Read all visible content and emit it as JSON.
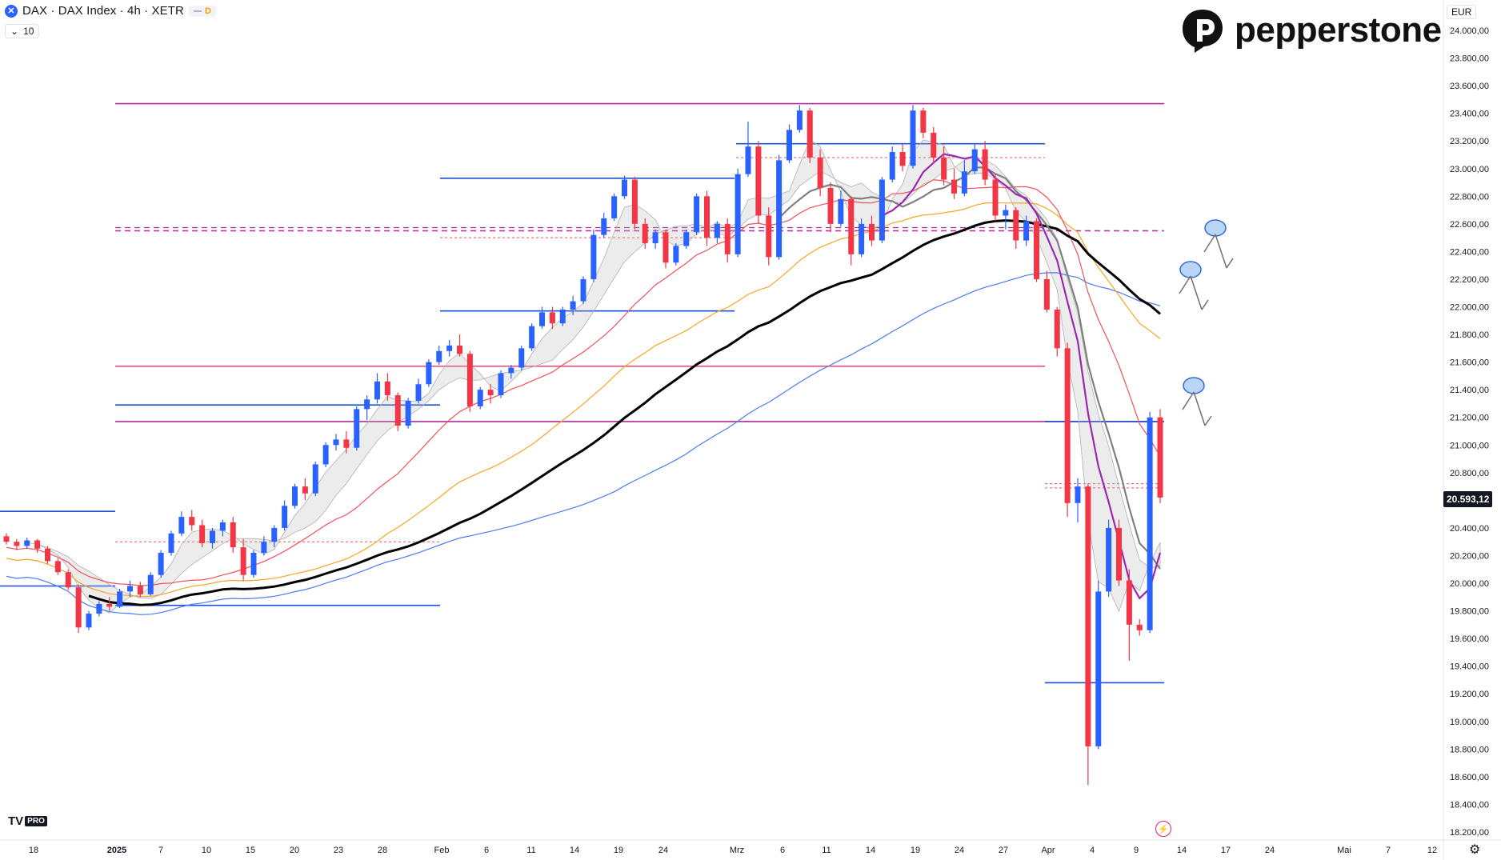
{
  "header": {
    "title": "DAX · DAX Index · 4h · XETR",
    "badge_letter": "D",
    "volume_label": "10",
    "currency": "EUR"
  },
  "brand": {
    "name": "pepperstone",
    "tv_logo": "TV",
    "tv_badge": "PRO"
  },
  "last_price": "20.593,12",
  "colors": {
    "up": "#2962ff",
    "down": "#f23645",
    "ma_black": "#000000",
    "ma_blue": "#4a7cf0",
    "ma_orange": "#f5a623",
    "ma_red": "#f0505a",
    "purple": "#9c27b0",
    "gray_ma": "#808080",
    "magenta_line": "#b02c98",
    "pink_line": "#f0507a",
    "level_blue": "#1e4fd8"
  },
  "chart_data": {
    "type": "candlestick",
    "symbol": "DAX",
    "timeframe": "4h",
    "ylim": [
      18200,
      24100
    ],
    "y_ticks": [
      "24.000,00",
      "23.800,00",
      "23.600,00",
      "23.400,00",
      "23.200,00",
      "23.000,00",
      "22.800,00",
      "22.600,00",
      "22.400,00",
      "22.200,00",
      "22.000,00",
      "21.800,00",
      "21.600,00",
      "21.400,00",
      "21.200,00",
      "21.000,00",
      "20.800,00",
      "20.600,00",
      "20.400,00",
      "20.200,00",
      "20.000,00",
      "19.800,00",
      "19.600,00",
      "19.400,00",
      "19.200,00",
      "19.000,00",
      "18.800,00",
      "18.600,00",
      "18.400,00",
      "18.200,00"
    ],
    "x_ticks": [
      "18",
      "2025",
      "7",
      "10",
      "15",
      "20",
      "23",
      "28",
      "Feb",
      "6",
      "11",
      "14",
      "19",
      "24",
      "Mrz",
      "6",
      "11",
      "14",
      "19",
      "24",
      "27",
      "Apr",
      "4",
      "9",
      "14",
      "17",
      "24",
      "Mai",
      "7",
      "12"
    ],
    "horizontal_levels": [
      {
        "price": 23470,
        "color": "magenta"
      },
      {
        "price": 23180,
        "color": "blue"
      },
      {
        "price": 22930,
        "color": "blue"
      },
      {
        "price": 22550,
        "color": "magenta",
        "dashed": true
      },
      {
        "price": 21970,
        "color": "blue"
      },
      {
        "price": 21570,
        "color": "pink"
      },
      {
        "price": 21290,
        "color": "blue"
      },
      {
        "price": 21170,
        "color": "magenta"
      },
      {
        "price": 20520,
        "color": "blue"
      },
      {
        "price": 19840,
        "color": "blue"
      },
      {
        "price": 19280,
        "color": "blue"
      }
    ],
    "candles": [
      [
        20340,
        20360,
        20280,
        20300
      ],
      [
        20300,
        20320,
        20240,
        20270
      ],
      [
        20270,
        20330,
        20250,
        20310
      ],
      [
        20310,
        20320,
        20220,
        20250
      ],
      [
        20250,
        20270,
        20140,
        20160
      ],
      [
        20160,
        20180,
        20060,
        20080
      ],
      [
        20080,
        20100,
        19950,
        19970
      ],
      [
        19970,
        19990,
        19640,
        19680
      ],
      [
        19680,
        19800,
        19660,
        19780
      ],
      [
        19780,
        19870,
        19760,
        19850
      ],
      [
        19850,
        19900,
        19800,
        19830
      ],
      [
        19830,
        19960,
        19820,
        19940
      ],
      [
        19940,
        20020,
        19900,
        19980
      ],
      [
        19980,
        20010,
        19900,
        19920
      ],
      [
        19920,
        20080,
        19910,
        20060
      ],
      [
        20060,
        20240,
        20040,
        20220
      ],
      [
        20220,
        20380,
        20200,
        20360
      ],
      [
        20360,
        20520,
        20340,
        20480
      ],
      [
        20480,
        20530,
        20380,
        20420
      ],
      [
        20420,
        20460,
        20260,
        20290
      ],
      [
        20290,
        20400,
        20250,
        20380
      ],
      [
        20380,
        20460,
        20340,
        20440
      ],
      [
        20440,
        20480,
        20220,
        20260
      ],
      [
        20260,
        20320,
        20020,
        20060
      ],
      [
        20060,
        20240,
        20040,
        20220
      ],
      [
        20220,
        20340,
        20200,
        20300
      ],
      [
        20300,
        20420,
        20260,
        20400
      ],
      [
        20400,
        20600,
        20380,
        20560
      ],
      [
        20560,
        20720,
        20540,
        20700
      ],
      [
        20700,
        20760,
        20600,
        20650
      ],
      [
        20650,
        20880,
        20630,
        20860
      ],
      [
        20860,
        21020,
        20840,
        21000
      ],
      [
        21000,
        21080,
        20960,
        21040
      ],
      [
        21040,
        21100,
        20940,
        20980
      ],
      [
        20980,
        21280,
        20960,
        21260
      ],
      [
        21260,
        21360,
        21180,
        21330
      ],
      [
        21330,
        21520,
        21300,
        21460
      ],
      [
        21460,
        21520,
        21320,
        21360
      ],
      [
        21360,
        21380,
        21100,
        21140
      ],
      [
        21140,
        21340,
        21120,
        21320
      ],
      [
        21320,
        21480,
        21300,
        21440
      ],
      [
        21440,
        21620,
        21420,
        21600
      ],
      [
        21600,
        21720,
        21580,
        21680
      ],
      [
        21680,
        21760,
        21640,
        21720
      ],
      [
        21720,
        21800,
        21640,
        21660
      ],
      [
        21660,
        21680,
        21240,
        21280
      ],
      [
        21280,
        21420,
        21260,
        21400
      ],
      [
        21400,
        21440,
        21300,
        21360
      ],
      [
        21360,
        21540,
        21340,
        21520
      ],
      [
        21520,
        21580,
        21480,
        21560
      ],
      [
        21560,
        21720,
        21540,
        21700
      ],
      [
        21700,
        21880,
        21680,
        21860
      ],
      [
        21860,
        22000,
        21840,
        21960
      ],
      [
        21960,
        22000,
        21840,
        21880
      ],
      [
        21880,
        22000,
        21860,
        21980
      ],
      [
        21980,
        22080,
        21940,
        22040
      ],
      [
        22040,
        22220,
        22020,
        22200
      ],
      [
        22200,
        22560,
        22180,
        22520
      ],
      [
        22520,
        22680,
        22500,
        22640
      ],
      [
        22640,
        22820,
        22620,
        22800
      ],
      [
        22800,
        22950,
        22780,
        22920
      ],
      [
        22920,
        22940,
        22560,
        22600
      ],
      [
        22600,
        22640,
        22420,
        22460
      ],
      [
        22460,
        22560,
        22420,
        22540
      ],
      [
        22540,
        22560,
        22280,
        22320
      ],
      [
        22320,
        22460,
        22300,
        22440
      ],
      [
        22440,
        22560,
        22420,
        22540
      ],
      [
        22540,
        22820,
        22520,
        22800
      ],
      [
        22800,
        22840,
        22440,
        22500
      ],
      [
        22500,
        22620,
        22460,
        22600
      ],
      [
        22600,
        22640,
        22320,
        22380
      ],
      [
        22380,
        23000,
        22360,
        22960
      ],
      [
        22960,
        23340,
        22940,
        23160
      ],
      [
        23160,
        23200,
        22600,
        22660
      ],
      [
        22660,
        22720,
        22300,
        22360
      ],
      [
        22360,
        23100,
        22340,
        23060
      ],
      [
        23060,
        23320,
        23040,
        23280
      ],
      [
        23280,
        23460,
        23260,
        23420
      ],
      [
        23420,
        23440,
        23040,
        23080
      ],
      [
        23080,
        23140,
        22800,
        22860
      ],
      [
        22860,
        22900,
        22540,
        22600
      ],
      [
        22600,
        22840,
        22580,
        22780
      ],
      [
        22780,
        22800,
        22300,
        22380
      ],
      [
        22380,
        22640,
        22360,
        22600
      ],
      [
        22600,
        22660,
        22440,
        22480
      ],
      [
        22480,
        22940,
        22460,
        22920
      ],
      [
        22920,
        23160,
        22900,
        23120
      ],
      [
        23120,
        23180,
        22980,
        23020
      ],
      [
        23020,
        23460,
        23000,
        23420
      ],
      [
        23420,
        23440,
        23220,
        23260
      ],
      [
        23260,
        23300,
        23040,
        23080
      ],
      [
        23080,
        23160,
        22880,
        22920
      ],
      [
        22920,
        23000,
        22780,
        22820
      ],
      [
        22820,
        23060,
        22800,
        22980
      ],
      [
        22980,
        23180,
        22960,
        23140
      ],
      [
        23140,
        23200,
        22880,
        22920
      ],
      [
        22920,
        22960,
        22620,
        22660
      ],
      [
        22660,
        22740,
        22560,
        22700
      ],
      [
        22700,
        22720,
        22420,
        22480
      ],
      [
        22480,
        22660,
        22440,
        22620
      ],
      [
        22620,
        22640,
        22180,
        22200
      ],
      [
        22200,
        22260,
        21960,
        21980
      ],
      [
        21980,
        22000,
        21640,
        21700
      ],
      [
        21700,
        21740,
        20480,
        20580
      ],
      [
        20580,
        20760,
        20440,
        20700
      ],
      [
        20700,
        20720,
        18540,
        18820
      ],
      [
        18820,
        20020,
        18800,
        19940
      ],
      [
        19940,
        20460,
        19900,
        20400
      ],
      [
        20400,
        20460,
        19980,
        20020
      ],
      [
        20020,
        20100,
        19440,
        19700
      ],
      [
        19700,
        19740,
        19620,
        19660
      ],
      [
        19660,
        21240,
        19640,
        21200
      ],
      [
        21200,
        21260,
        20580,
        20620
      ]
    ],
    "moving_averages": [
      {
        "name": "MA black",
        "color": "#000000"
      },
      {
        "name": "MA blue",
        "color": "#4a7cf0"
      },
      {
        "name": "MA orange",
        "color": "#f5a623"
      },
      {
        "name": "MA red",
        "color": "#f0505a"
      },
      {
        "name": "MA purple",
        "color": "#9c27b0"
      },
      {
        "name": "MA gray",
        "color": "#808080"
      }
    ]
  }
}
